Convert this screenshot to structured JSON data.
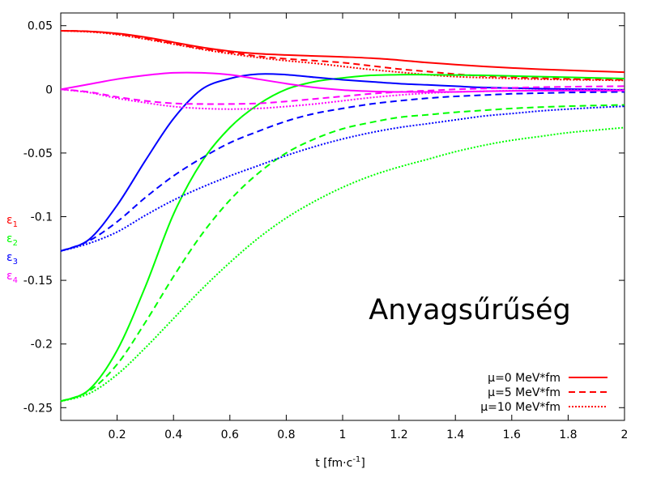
{
  "chart_data": {
    "type": "line",
    "title": "Anyagsűrűség",
    "xlabel": "t [fm·c",
    "xlabel_exp": "-1",
    "xlabel_end": "]",
    "ylabel": "",
    "xlim": [
      0,
      2
    ],
    "ylim": [
      -0.26,
      0.06
    ],
    "grid": false,
    "x_ticks": [
      0.2,
      0.4,
      0.6,
      0.8,
      1,
      1.2,
      1.4,
      1.6,
      1.8,
      2
    ],
    "x_tick_labels": [
      "0.2",
      "0.4",
      "0.6",
      "0.8",
      "1",
      "1.2",
      "1.4",
      "1.6",
      "1.8",
      "2"
    ],
    "y_ticks": [
      0.05,
      0,
      -0.05,
      -0.1,
      -0.15,
      -0.2,
      -0.25
    ],
    "y_tick_labels": [
      "0.05",
      "0",
      "-0.05",
      "-0.1",
      "-0.15",
      "-0.2",
      "-0.25"
    ],
    "epsilon_labels": [
      {
        "text": "ε",
        "sub": "1",
        "color": "#ff0000"
      },
      {
        "text": "ε",
        "sub": "2",
        "color": "#00ff00"
      },
      {
        "text": "ε",
        "sub": "3",
        "color": "#0000ff"
      },
      {
        "text": "ε",
        "sub": "4",
        "color": "#ff00ff"
      }
    ],
    "legend": {
      "placement": "bottom-right",
      "color": "#ff0000",
      "entries": [
        {
          "label": "μ=0 MeV*fm",
          "style": "solid"
        },
        {
          "label": "μ=5 MeV*fm",
          "style": "dashed"
        },
        {
          "label": "μ=10 MeV*fm",
          "style": "dotted"
        }
      ]
    },
    "x": [
      0,
      0.1,
      0.2,
      0.3,
      0.4,
      0.5,
      0.6,
      0.7,
      0.8,
      0.9,
      1.0,
      1.1,
      1.2,
      1.3,
      1.4,
      1.5,
      1.6,
      1.7,
      1.8,
      1.9,
      2.0
    ],
    "series": [
      {
        "color": "#ff0000",
        "style": "solid",
        "values": [
          0.046,
          0.0455,
          0.044,
          0.041,
          0.037,
          0.033,
          0.03,
          0.028,
          0.027,
          0.0262,
          0.0255,
          0.0245,
          0.023,
          0.021,
          0.0195,
          0.018,
          0.0168,
          0.0158,
          0.015,
          0.0142,
          0.0135
        ]
      },
      {
        "color": "#ff0000",
        "style": "dashed",
        "values": [
          0.046,
          0.0455,
          0.0435,
          0.04,
          0.036,
          0.032,
          0.029,
          0.026,
          0.024,
          0.0225,
          0.021,
          0.0185,
          0.016,
          0.014,
          0.012,
          0.0105,
          0.0095,
          0.0088,
          0.0082,
          0.0078,
          0.0075
        ]
      },
      {
        "color": "#ff0000",
        "style": "dotted",
        "values": [
          0.046,
          0.0452,
          0.043,
          0.0395,
          0.0355,
          0.0315,
          0.028,
          0.025,
          0.0225,
          0.0205,
          0.018,
          0.0155,
          0.0135,
          0.0115,
          0.01,
          0.0092,
          0.0085,
          0.008,
          0.0076,
          0.0073,
          0.007
        ]
      },
      {
        "color": "#00ff00",
        "style": "solid",
        "values": [
          -0.245,
          -0.236,
          -0.205,
          -0.155,
          -0.098,
          -0.057,
          -0.03,
          -0.012,
          0.0,
          0.006,
          0.009,
          0.011,
          0.0115,
          0.0115,
          0.0113,
          0.011,
          0.0105,
          0.01,
          0.0095,
          0.009,
          0.0085
        ]
      },
      {
        "color": "#00ff00",
        "style": "dashed",
        "values": [
          -0.245,
          -0.237,
          -0.216,
          -0.183,
          -0.147,
          -0.114,
          -0.087,
          -0.066,
          -0.05,
          -0.039,
          -0.031,
          -0.026,
          -0.022,
          -0.02,
          -0.018,
          -0.0165,
          -0.015,
          -0.014,
          -0.0132,
          -0.0127,
          -0.0122
        ]
      },
      {
        "color": "#00ff00",
        "style": "dotted",
        "values": [
          -0.245,
          -0.239,
          -0.224,
          -0.203,
          -0.18,
          -0.157,
          -0.136,
          -0.117,
          -0.101,
          -0.088,
          -0.077,
          -0.068,
          -0.061,
          -0.055,
          -0.049,
          -0.044,
          -0.04,
          -0.037,
          -0.034,
          -0.032,
          -0.03
        ]
      },
      {
        "color": "#0000ff",
        "style": "solid",
        "values": [
          -0.127,
          -0.118,
          -0.091,
          -0.056,
          -0.023,
          0.0,
          0.0085,
          0.012,
          0.0115,
          0.0095,
          0.0075,
          0.006,
          0.0045,
          0.0035,
          0.0025,
          0.0015,
          0.001,
          0.0005,
          0.0002,
          0.0,
          -0.0005
        ]
      },
      {
        "color": "#0000ff",
        "style": "dashed",
        "values": [
          -0.127,
          -0.119,
          -0.104,
          -0.085,
          -0.068,
          -0.054,
          -0.042,
          -0.033,
          -0.025,
          -0.019,
          -0.015,
          -0.0115,
          -0.009,
          -0.007,
          -0.0055,
          -0.0045,
          -0.0035,
          -0.003,
          -0.0025,
          -0.0022,
          -0.002
        ]
      },
      {
        "color": "#0000ff",
        "style": "dotted",
        "values": [
          -0.127,
          -0.121,
          -0.112,
          -0.099,
          -0.087,
          -0.077,
          -0.068,
          -0.06,
          -0.052,
          -0.045,
          -0.039,
          -0.034,
          -0.03,
          -0.027,
          -0.024,
          -0.021,
          -0.019,
          -0.017,
          -0.0155,
          -0.0143,
          -0.0133
        ]
      },
      {
        "color": "#ff00ff",
        "style": "solid",
        "values": [
          0.0,
          0.004,
          0.008,
          0.011,
          0.013,
          0.013,
          0.0115,
          0.008,
          0.0045,
          0.0015,
          -0.0005,
          -0.0015,
          -0.002,
          -0.002,
          -0.002,
          -0.0015,
          -0.0012,
          -0.001,
          -0.001,
          -0.001,
          -0.001
        ]
      },
      {
        "color": "#ff00ff",
        "style": "dashed",
        "values": [
          0.0,
          -0.002,
          -0.006,
          -0.009,
          -0.011,
          -0.0115,
          -0.0115,
          -0.011,
          -0.0095,
          -0.0075,
          -0.0055,
          -0.0035,
          -0.002,
          -0.001,
          0.0,
          0.0007,
          0.0012,
          0.0017,
          0.002,
          0.0023,
          0.0025
        ]
      },
      {
        "color": "#ff00ff",
        "style": "dotted",
        "values": [
          0.0,
          -0.0025,
          -0.007,
          -0.0105,
          -0.0135,
          -0.015,
          -0.0155,
          -0.015,
          -0.0135,
          -0.0115,
          -0.009,
          -0.0065,
          -0.0045,
          -0.003,
          -0.002,
          -0.0015,
          -0.001,
          -0.0008,
          -0.0006,
          -0.0005,
          -0.0005
        ]
      }
    ]
  }
}
